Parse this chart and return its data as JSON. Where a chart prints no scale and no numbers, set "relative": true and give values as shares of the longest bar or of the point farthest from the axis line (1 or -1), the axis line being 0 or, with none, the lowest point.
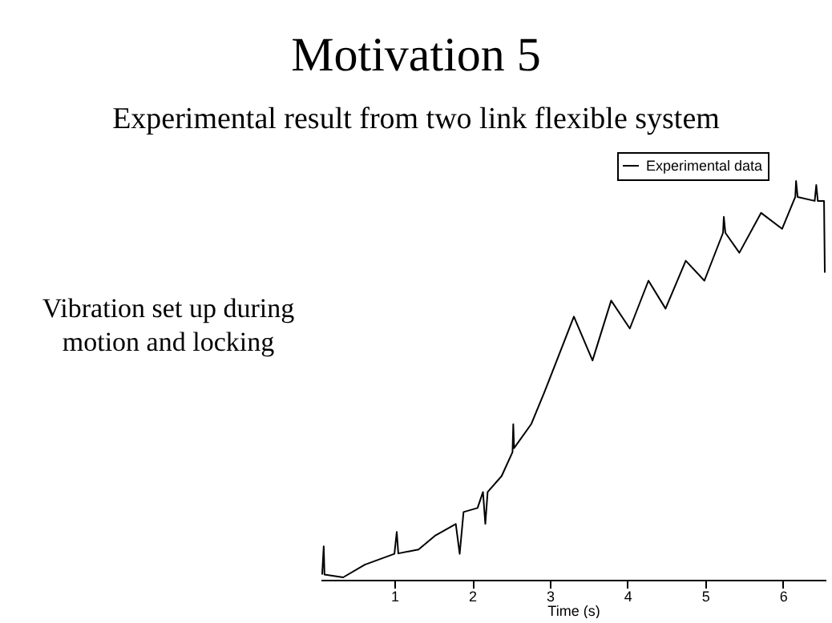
{
  "chart_data": {
    "type": "line",
    "title": "Motivation 5",
    "subtitle": "Experimental result from two link flexible system",
    "xlabel": "Time (s)",
    "annotations": [
      "Vibration set up during motion and locking"
    ],
    "relative": true,
    "legend": "top right",
    "xlim": [
      0.05,
      6.55
    ],
    "xticks": [
      1,
      2,
      3,
      4,
      5,
      6
    ],
    "x": [
      0.07,
      0.09,
      0.1,
      0.34,
      0.62,
      1.0,
      1.03,
      1.05,
      1.31,
      1.52,
      1.79,
      1.84,
      1.89,
      2.07,
      2.14,
      2.17,
      2.2,
      2.38,
      2.52,
      2.53,
      2.54,
      2.76,
      2.93,
      3.03,
      3.31,
      3.55,
      3.79,
      4.03,
      4.27,
      4.49,
      4.75,
      4.99,
      5.23,
      5.24,
      5.26,
      5.44,
      5.72,
      5.99,
      6.16,
      6.17,
      6.19,
      6.41,
      6.43,
      6.45,
      6.53,
      6.54
    ],
    "series": [
      {
        "name": "Experimental data",
        "color": "#000000",
        "values": [
          0.013,
          0.084,
          0.013,
          0.006,
          0.038,
          0.065,
          0.12,
          0.066,
          0.076,
          0.11,
          0.14,
          0.065,
          0.17,
          0.18,
          0.22,
          0.14,
          0.22,
          0.26,
          0.32,
          0.39,
          0.33,
          0.39,
          0.47,
          0.52,
          0.66,
          0.55,
          0.7,
          0.63,
          0.75,
          0.68,
          0.8,
          0.75,
          0.87,
          0.91,
          0.87,
          0.82,
          0.92,
          0.88,
          0.96,
          1.0,
          0.96,
          0.95,
          0.99,
          0.95,
          0.95,
          0.77
        ]
      }
    ]
  }
}
